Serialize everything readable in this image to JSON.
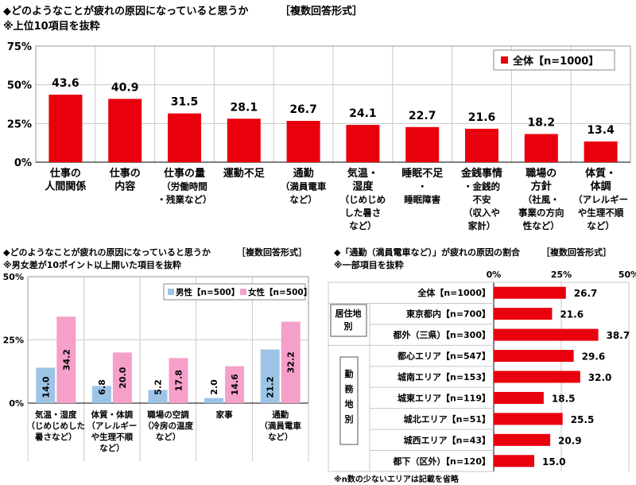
{
  "chart1": {
    "title": "◆どのようなことが疲れの原因になっていると思うか",
    "note": "［複数回答形式］",
    "subtitle": "※上位10項目を抜粋",
    "legend": "全体【n=1000】",
    "y_ticks": [
      "75%",
      "50%",
      "25%",
      "0%"
    ],
    "categories": [
      [
        "仕事の",
        "人間関係"
      ],
      [
        "仕事の",
        "内容"
      ],
      [
        "仕事の量",
        "（労働時間",
        "・残業など）"
      ],
      [
        "運動不足"
      ],
      [
        "通勤",
        "（満員電車",
        "など）"
      ],
      [
        "気温・",
        "湿度",
        "（じめじめ",
        "した暑さ",
        "など）"
      ],
      [
        "睡眠不足",
        "・",
        "睡眠障害"
      ],
      [
        "金銭事情",
        "・金銭的",
        "不安",
        "（収入や",
        "家計）"
      ],
      [
        "職場の",
        "方針",
        "（社風・",
        "事業の方向",
        "性など）"
      ],
      [
        "体質・",
        "体調",
        "（アレルギー",
        "や生理不順",
        "など）"
      ]
    ],
    "value_labels": [
      "43.6",
      "40.9",
      "31.5",
      "28.1",
      "26.7",
      "24.1",
      "22.7",
      "21.6",
      "18.2",
      "13.4"
    ]
  },
  "chart2": {
    "title": "◆どのようなことが疲れの原因になっていると思うか",
    "note": "［複数回答形式］",
    "subtitle": "※男女差が10ポイント以上開いた項目を抜粋",
    "legend_male": "男性【n=500】",
    "legend_female": "女性【n=500】",
    "y_ticks": [
      "50%",
      "25%",
      "0%"
    ],
    "categories": [
      [
        "気温・湿度",
        "（じめじめした",
        "暑さなど）"
      ],
      [
        "体質・体調",
        "（アレルギー",
        "や生理不順",
        "など）"
      ],
      [
        "職場の空調",
        "（冷房の温度",
        "など）"
      ],
      [
        "家事"
      ],
      [
        "通勤",
        "（満員電車",
        "など）"
      ]
    ],
    "male_labels": [
      "14.0",
      "6.8",
      "5.2",
      "2.0",
      "21.2"
    ],
    "female_labels": [
      "34.2",
      "20.0",
      "17.8",
      "14.6",
      "32.2"
    ]
  },
  "chart3": {
    "title": "◆「通勤（満員電車など）」が疲れの原因の割合",
    "note": "［複数回答形式］",
    "subtitle": "※一部項目を抜粋",
    "x_ticks": [
      "0%",
      "25%",
      "50%"
    ],
    "group_residence": [
      "居住地",
      "別"
    ],
    "group_work": [
      "勤",
      "務",
      "地",
      "別"
    ],
    "row_labels": [
      "全体【n=1000】",
      "東京都内【n=700】",
      "都外（三県）【n=300】",
      "都心エリア【n=547】",
      "城南エリア【n=153】",
      "城東エリア【n=119】",
      "城北エリア【n=51】",
      "城西エリア【n=43】",
      "都下（区外）【n=120】"
    ],
    "value_labels": [
      "26.7",
      "21.6",
      "38.7",
      "29.6",
      "32.0",
      "18.5",
      "25.5",
      "20.9",
      "15.0"
    ],
    "footnote": "※n数の少ないエリアは記載を省略"
  },
  "colors": {
    "red": "#e8000d",
    "blue": "#9dc3e6",
    "pink": "#f4a0c8",
    "grid": "#c8c8c8",
    "frame": "#9a9a9a"
  },
  "chart_data": [
    {
      "type": "bar",
      "title": "◆どのようなことが疲れの原因になっていると思うか",
      "categories": [
        "仕事の人間関係",
        "仕事の内容",
        "仕事の量（労働時間・残業など）",
        "運動不足",
        "通勤（満員電車など）",
        "気温・湿度（じめじめした暑さなど）",
        "睡眠不足・睡眠障害",
        "金銭事情・金銭的不安（収入や家計）",
        "職場の方針（社風・事業の方向性など）",
        "体質・体調（アレルギーや生理不順など）"
      ],
      "series": [
        {
          "name": "全体【n=1000】",
          "values": [
            43.6,
            40.9,
            31.5,
            28.1,
            26.7,
            24.1,
            22.7,
            21.6,
            18.2,
            13.4
          ]
        }
      ],
      "ylim": [
        0,
        75
      ],
      "grid": true,
      "legend": "top-right"
    },
    {
      "type": "bar",
      "title": "◆どのようなことが疲れの原因になっていると思うか",
      "categories": [
        "気温・湿度（じめじめした暑さなど）",
        "体質・体調（アレルギーや生理不順など）",
        "職場の空調（冷房の温度など）",
        "家事",
        "通勤（満員電車など）"
      ],
      "series": [
        {
          "name": "男性【n=500】",
          "values": [
            14.0,
            6.8,
            5.2,
            2.0,
            21.2
          ]
        },
        {
          "name": "女性【n=500】",
          "values": [
            34.2,
            20.0,
            17.8,
            14.6,
            32.2
          ]
        }
      ],
      "ylim": [
        0,
        50
      ],
      "grid": true,
      "legend": "top-right"
    },
    {
      "type": "bar",
      "orientation": "horizontal",
      "title": "◆「通勤（満員電車など）」が疲れの原因の割合",
      "categories": [
        "全体【n=1000】",
        "東京都内【n=700】",
        "都外（三県）【n=300】",
        "都心エリア【n=547】",
        "城南エリア【n=153】",
        "城東エリア【n=119】",
        "城北エリア【n=51】",
        "城西エリア【n=43】",
        "都下（区外）【n=120】"
      ],
      "series": [
        {
          "values": [
            26.7,
            21.6,
            38.7,
            29.6,
            32.0,
            18.5,
            25.5,
            20.9,
            15.0
          ]
        }
      ],
      "xlim": [
        0,
        50
      ],
      "grid": true
    }
  ]
}
